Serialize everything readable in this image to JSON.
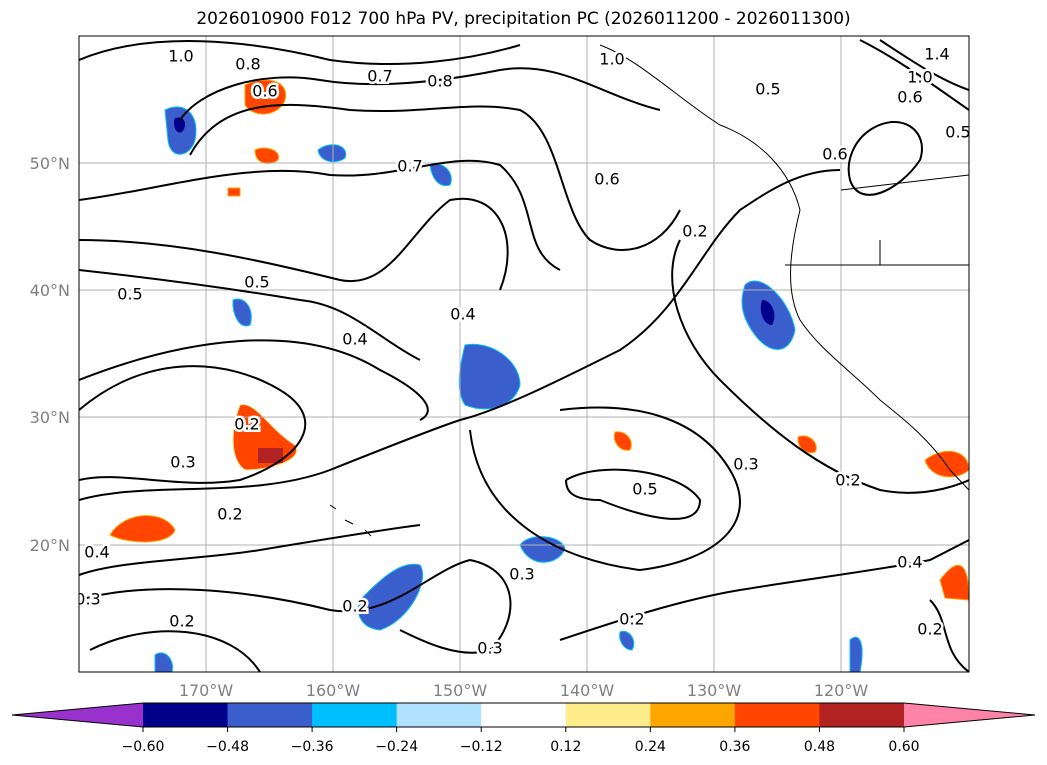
{
  "title": "2026010900 F012 700 hPa PV, precipitation PC (2026011200 - 2026011300)",
  "axes": {
    "lat_labels": [
      "50°N",
      "40°N",
      "30°N",
      "20°N"
    ],
    "lon_labels": [
      "170°W",
      "160°W",
      "150°W",
      "140°W",
      "130°W",
      "120°W"
    ],
    "extent": {
      "lon": [
        -180,
        -110
      ],
      "lat": [
        10,
        60
      ]
    }
  },
  "contour_labels": [
    "1.0",
    "0.8",
    "0.6",
    "0.7",
    "0.8",
    "1.0",
    "0.5",
    "1.4",
    "1.0",
    "0.6",
    "0.5",
    "0.7",
    "0.6",
    "0.2",
    "0.5",
    "0.5",
    "0.4",
    "0.4",
    "0.2",
    "0.3",
    "0.3",
    "0.2",
    "0.5",
    "0.2",
    "0.4",
    "0.3",
    "0.4",
    "0.3",
    "0.2",
    "0.2",
    "0.2",
    "0.3",
    "0.2",
    "0.6"
  ],
  "colorbar": {
    "ticks": [
      "−0.60",
      "−0.48",
      "−0.36",
      "−0.24",
      "−0.12",
      "0.12",
      "0.24",
      "0.36",
      "0.48",
      "0.60"
    ],
    "colors": [
      "#9932cc",
      "#00008b",
      "#3a5fcd",
      "#00bfff",
      "#b0e2ff",
      "#ffffff",
      "#ffec8b",
      "#ffa500",
      "#ff4500",
      "#b22222",
      "#ff83a8"
    ],
    "extend": "both"
  }
}
